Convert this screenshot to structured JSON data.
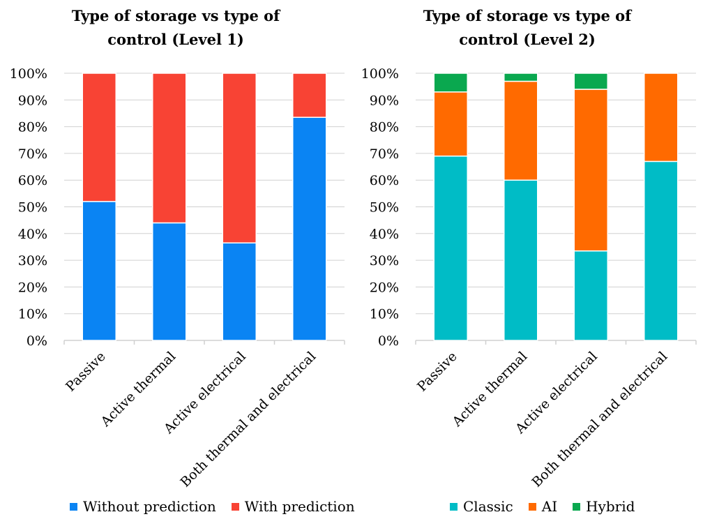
{
  "colors": {
    "without_prediction": "#0a84f3",
    "with_prediction": "#f84334",
    "classic": "#00bcc6",
    "ai": "#ff6a00",
    "hybrid": "#0aa84f",
    "axis": "#d0d0d0"
  },
  "chart_data": [
    {
      "type": "bar",
      "stacked": true,
      "title": "Type of storage vs type of\ncontrol (Level 1)",
      "categories": [
        "Passive",
        "Active thermal",
        "Active electrical",
        "Both thermal and electrical"
      ],
      "series": [
        {
          "name": "Without prediction",
          "values": [
            52,
            44,
            36.5,
            83.5
          ]
        },
        {
          "name": "With prediction",
          "values": [
            48,
            56,
            63.5,
            16.5
          ]
        }
      ],
      "y_ticks": [
        "0%",
        "10%",
        "20%",
        "30%",
        "40%",
        "50%",
        "60%",
        "70%",
        "80%",
        "90%",
        "100%"
      ],
      "ylim": [
        0,
        100
      ],
      "grid": true,
      "legend_position": "bottom"
    },
    {
      "type": "bar",
      "stacked": true,
      "title": "Type of storage vs type of\ncontrol (Level 2)",
      "categories": [
        "Passive",
        "Active thermal",
        "Active electrical",
        "Both thermal and electrical"
      ],
      "series": [
        {
          "name": "Classic",
          "values": [
            69,
            60,
            33.5,
            67
          ]
        },
        {
          "name": "AI",
          "values": [
            24,
            37,
            60.5,
            33
          ]
        },
        {
          "name": "Hybrid",
          "values": [
            7,
            3,
            6,
            0
          ]
        }
      ],
      "y_ticks": [
        "0%",
        "10%",
        "20%",
        "30%",
        "40%",
        "50%",
        "60%",
        "70%",
        "80%",
        "90%",
        "100%"
      ],
      "ylim": [
        0,
        100
      ],
      "grid": true,
      "legend_position": "bottom"
    }
  ]
}
